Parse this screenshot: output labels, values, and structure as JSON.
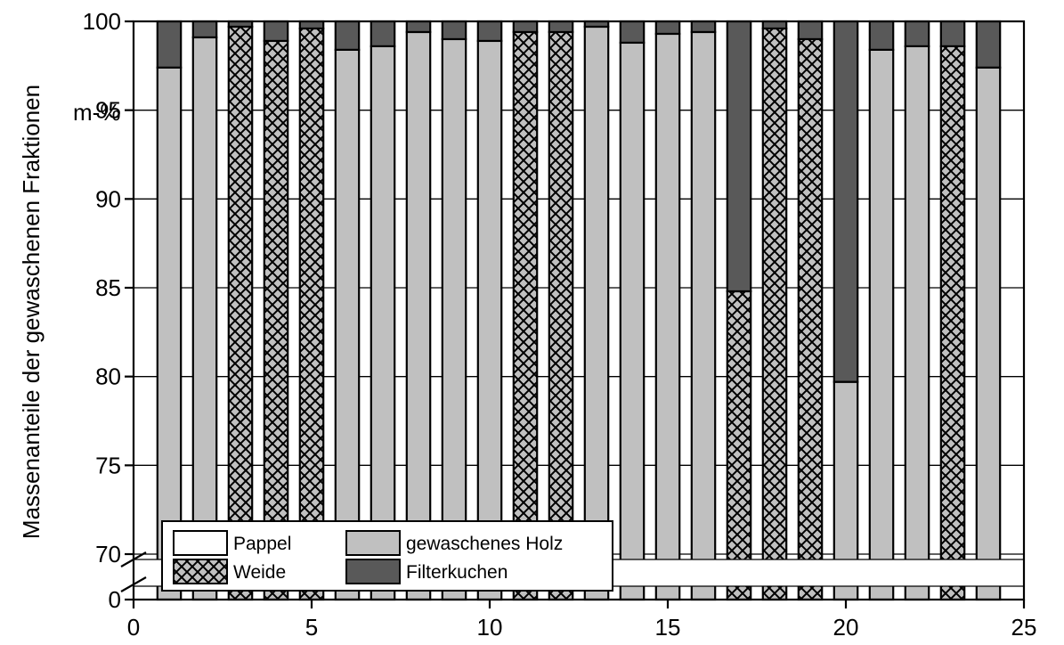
{
  "chart_data": {
    "type": "bar",
    "stacked": true,
    "ylabel": "Massenanteile der gewaschenen Fraktionen",
    "yunit": "m-%",
    "xlim": [
      0,
      25
    ],
    "x_ticks": [
      "0",
      "5",
      "10",
      "15",
      "20",
      "25"
    ],
    "ylim_upper": [
      70,
      100
    ],
    "y_ticks_upper": [
      "70",
      "75",
      "80",
      "85",
      "90",
      "95",
      "100"
    ],
    "y_ticks_lower": [
      "0"
    ],
    "axis_break": true,
    "grid": "horizontal",
    "legend_position": "bottom-left",
    "legend": {
      "pappel": "Pappel",
      "weide": "Weide",
      "holz": "gewaschenes Holz",
      "filter": "Filterkuchen"
    },
    "colors": {
      "holz": "#c0c0c0",
      "filter": "#595959",
      "weide_bg": "#c0c0c0",
      "weide_hatch": "#000000",
      "pappel": "#ffffff"
    },
    "x": [
      1,
      2,
      3,
      4,
      5,
      6,
      7,
      8,
      9,
      10,
      11,
      12,
      13,
      14,
      15,
      16,
      17,
      18,
      19,
      20,
      21,
      22,
      23,
      24
    ],
    "material": [
      "Pappel",
      "Pappel",
      "Weide",
      "Weide",
      "Weide",
      "Pappel",
      "Pappel",
      "Pappel",
      "Pappel",
      "Pappel",
      "Weide",
      "Weide",
      "Pappel",
      "Pappel",
      "Pappel",
      "Pappel",
      "Weide",
      "Weide",
      "Weide",
      "Pappel",
      "Pappel",
      "Pappel",
      "Weide",
      "Pappel"
    ],
    "series": [
      {
        "name": "gewaschenes Holz",
        "values": [
          97.4,
          99.1,
          99.7,
          98.9,
          99.6,
          98.4,
          98.6,
          99.4,
          99.0,
          98.9,
          99.4,
          99.4,
          99.7,
          98.8,
          99.3,
          99.4,
          84.8,
          99.6,
          99.0,
          79.7,
          98.4,
          98.6,
          98.6,
          97.4
        ]
      },
      {
        "name": "Filterkuchen",
        "values": [
          2.6,
          0.9,
          0.3,
          1.1,
          0.4,
          1.6,
          1.4,
          0.6,
          1.0,
          1.1,
          0.6,
          0.6,
          0.3,
          1.2,
          0.7,
          0.6,
          15.2,
          0.4,
          1.0,
          20.3,
          1.6,
          1.4,
          1.4,
          2.6
        ]
      }
    ]
  }
}
